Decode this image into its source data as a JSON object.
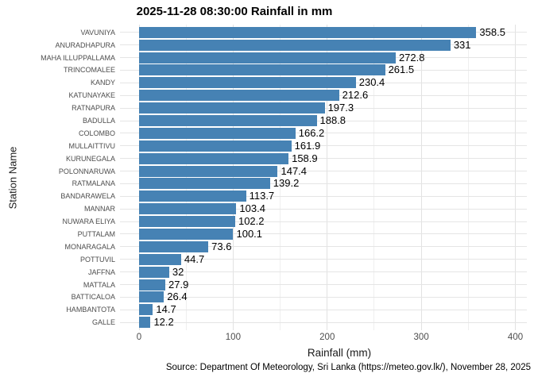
{
  "title": "2025-11-28 08:30:00 Rainfall in mm",
  "source": "Source: Department Of Meteorology, Sri Lanka (https://meteo.gov.lk/), November 28, 2025",
  "colors": {
    "bar": "#4682b4",
    "grid_major": "#e2e2e2",
    "grid_minor": "#efefef",
    "axis_text": "#4d4d4d",
    "value_text": "#000000"
  },
  "chart_data": {
    "type": "bar",
    "orientation": "horizontal",
    "title": "2025-11-28 08:30:00 Rainfall in mm",
    "xlabel": "Rainfall (mm)",
    "ylabel": "Station Name",
    "categories": [
      "VAVUNIYA",
      "ANURADHAPURA",
      "MAHA ILLUPPALLAMA",
      "TRINCOMALEE",
      "KANDY",
      "KATUNAYAKE",
      "RATNAPURA",
      "BADULLA",
      "COLOMBO",
      "MULLAITTIVU",
      "KURUNEGALA",
      "POLONNARUWA",
      "RATMALANA",
      "BANDARAWELA",
      "MANNAR",
      "NUWARA ELIYA",
      "PUTTALAM",
      "MONARAGALA",
      "POTTUVIL",
      "JAFFNA",
      "MATTALA",
      "BATTICALOA",
      "HAMBANTOTA",
      "GALLE"
    ],
    "values": [
      358.5,
      331,
      272.8,
      261.5,
      230.4,
      212.6,
      197.3,
      188.8,
      166.2,
      161.9,
      158.9,
      147.4,
      139.2,
      113.7,
      103.4,
      102.2,
      100.1,
      73.6,
      44.7,
      32,
      27.9,
      26.4,
      14.7,
      12.2
    ],
    "value_labels": [
      "358.5",
      "331",
      "272.8",
      "261.5",
      "230.4",
      "212.6",
      "197.3",
      "188.8",
      "166.2",
      "161.9",
      "158.9",
      "147.4",
      "139.2",
      "113.7",
      "103.4",
      "102.2",
      "100.1",
      "73.6",
      "44.7",
      "32",
      "27.9",
      "26.4",
      "14.7",
      "12.2"
    ],
    "x_major_ticks": [
      0,
      100,
      200,
      300,
      400
    ],
    "x_major_tick_labels": [
      "0",
      "100",
      "200",
      "300",
      "400"
    ],
    "x_minor_ticks": [
      50,
      150,
      250,
      350
    ],
    "xlim": [
      -20,
      412
    ],
    "grid": true,
    "legend": "none",
    "bar_color": "#4682b4"
  }
}
